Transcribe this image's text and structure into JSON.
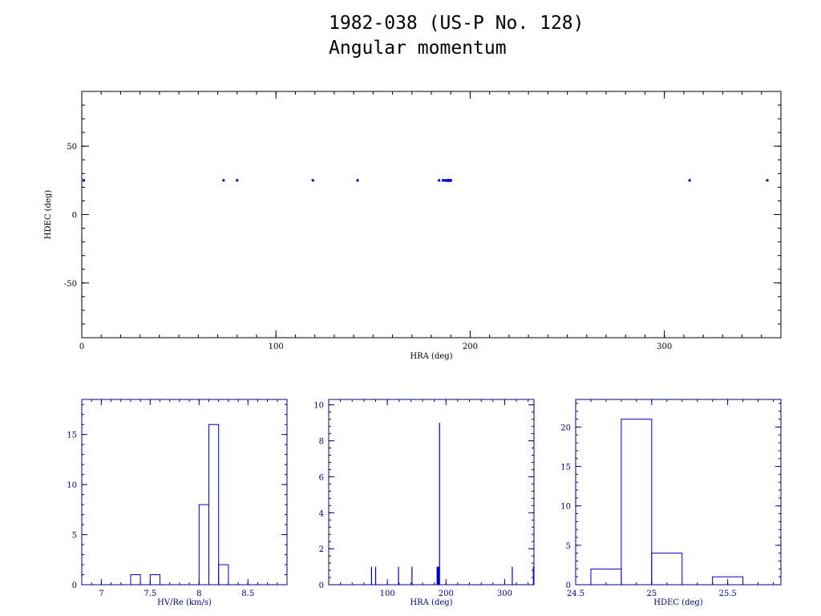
{
  "title": "1982-038 (US-P No. 128)",
  "subtitle": "Angular momentum",
  "colors": {
    "axis_black": "#000000",
    "axis_blue": "#00008b",
    "data_blue": "#0000cc"
  },
  "chart_data": [
    {
      "type": "scatter",
      "xlabel": "HRA (deg)",
      "ylabel": "HDEC (deg)",
      "xlim": [
        0,
        360
      ],
      "ylim": [
        -90,
        90
      ],
      "xticks": [
        0,
        100,
        200,
        300
      ],
      "yticks": [
        -50,
        0,
        50
      ],
      "x": [
        1,
        73,
        80,
        119,
        142,
        184,
        186,
        187,
        188,
        188,
        189,
        189,
        189,
        190,
        190,
        313,
        353
      ],
      "y": [
        25,
        25,
        25,
        25,
        25,
        25,
        25,
        25,
        25,
        24.8,
        25,
        24.7,
        25.2,
        25,
        24.9,
        25,
        25
      ]
    },
    {
      "type": "histogram",
      "xlabel": "HV/Re (km/s)",
      "xlim": [
        6.8,
        8.9
      ],
      "ylim": [
        0,
        18.5
      ],
      "xticks": [
        "7",
        "7.5",
        "8",
        "8.5"
      ],
      "yticks": [
        "0",
        "5",
        "10",
        "15"
      ],
      "bins": [
        {
          "x0": 7.3,
          "x1": 7.4,
          "count": 1
        },
        {
          "x0": 7.5,
          "x1": 7.6,
          "count": 1
        },
        {
          "x0": 8.0,
          "x1": 8.1,
          "count": 8
        },
        {
          "x0": 8.1,
          "x1": 8.2,
          "count": 16
        },
        {
          "x0": 8.2,
          "x1": 8.3,
          "count": 2
        }
      ]
    },
    {
      "type": "histogram",
      "xlabel": "HRA (deg)",
      "xlim": [
        0,
        350
      ],
      "ylim": [
        0,
        10.3
      ],
      "xticks": [
        "100",
        "200",
        "300"
      ],
      "yticks": [
        "0",
        "2",
        "4",
        "6",
        "8",
        "10"
      ],
      "bins": [
        {
          "x0": 73,
          "x1": 73,
          "count": 1
        },
        {
          "x0": 80,
          "x1": 80,
          "count": 1
        },
        {
          "x0": 119,
          "x1": 119,
          "count": 1
        },
        {
          "x0": 142,
          "x1": 142,
          "count": 1
        },
        {
          "x0": 184,
          "x1": 189,
          "count": 1
        },
        {
          "x0": 189,
          "x1": 189,
          "count": 9
        },
        {
          "x0": 313,
          "x1": 313,
          "count": 1
        },
        {
          "x0": 349,
          "x1": 349,
          "count": 1
        }
      ]
    },
    {
      "type": "histogram",
      "xlabel": "HDEC (deg)",
      "xlim": [
        24.5,
        25.85
      ],
      "ylim": [
        0,
        23.5
      ],
      "xticks": [
        "24.5",
        "25",
        "25.5"
      ],
      "yticks": [
        "0",
        "5",
        "10",
        "15",
        "20"
      ],
      "bins": [
        {
          "x0": 24.6,
          "x1": 24.8,
          "count": 2
        },
        {
          "x0": 24.8,
          "x1": 25.0,
          "count": 21
        },
        {
          "x0": 25.0,
          "x1": 25.2,
          "count": 4
        },
        {
          "x0": 25.2,
          "x1": 25.4,
          "count": 0
        },
        {
          "x0": 25.4,
          "x1": 25.6,
          "count": 1
        }
      ]
    }
  ]
}
